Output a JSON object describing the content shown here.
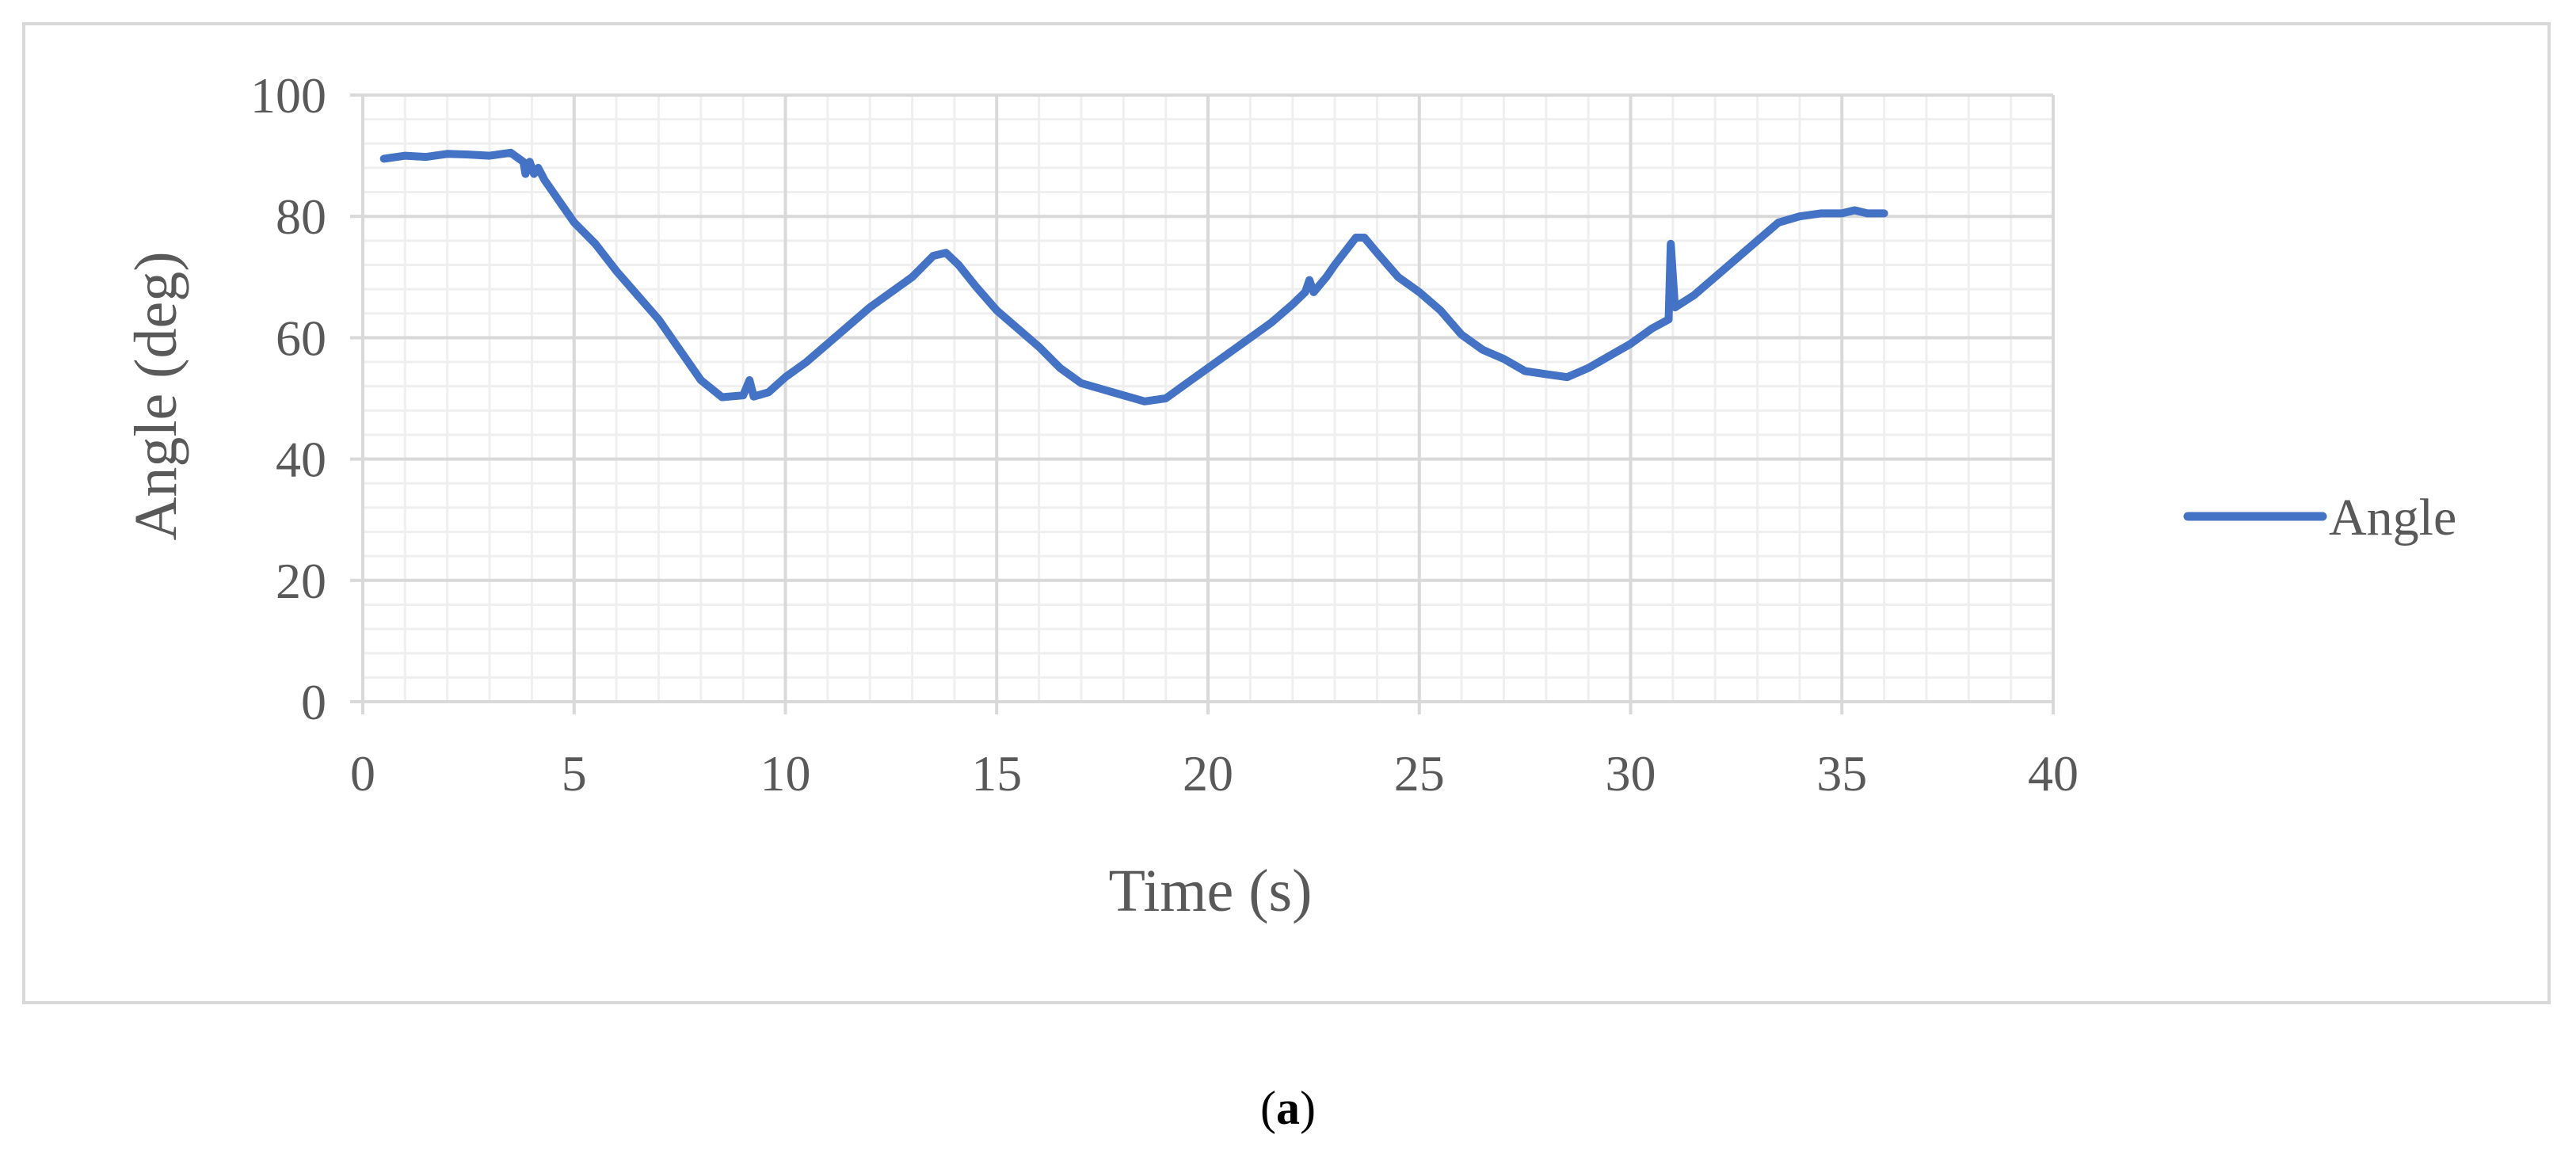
{
  "chart_data": {
    "type": "line",
    "xlabel": "Time (s)",
    "ylabel": "Angle (deg)",
    "xlim": [
      0,
      40
    ],
    "ylim": [
      0,
      100
    ],
    "x_ticks": [
      "0",
      "5",
      "10",
      "15",
      "20",
      "25",
      "30",
      "35",
      "40"
    ],
    "y_ticks": [
      "0",
      "20",
      "40",
      "60",
      "80",
      "100"
    ],
    "grid": true,
    "legend_position": "right",
    "series": [
      {
        "name": "Angle",
        "color": "#4472c4",
        "points": [
          [
            0.5,
            89.5
          ],
          [
            1,
            90
          ],
          [
            1.5,
            89.8
          ],
          [
            2,
            90.3
          ],
          [
            2.5,
            90.2
          ],
          [
            3,
            90
          ],
          [
            3.5,
            90.5
          ],
          [
            3.8,
            89
          ],
          [
            3.85,
            87
          ],
          [
            3.95,
            89
          ],
          [
            4.05,
            87
          ],
          [
            4.15,
            88
          ],
          [
            4.3,
            86
          ],
          [
            4.6,
            83
          ],
          [
            5,
            79
          ],
          [
            5.5,
            75.5
          ],
          [
            6,
            71
          ],
          [
            6.5,
            67
          ],
          [
            7,
            63
          ],
          [
            7.5,
            58
          ],
          [
            8,
            53
          ],
          [
            8.5,
            50.2
          ],
          [
            9,
            50.5
          ],
          [
            9.15,
            53
          ],
          [
            9.25,
            50.3
          ],
          [
            9.6,
            51
          ],
          [
            10,
            53.5
          ],
          [
            10.5,
            56
          ],
          [
            11,
            59
          ],
          [
            11.5,
            62
          ],
          [
            12,
            65
          ],
          [
            12.5,
            67.5
          ],
          [
            13,
            70
          ],
          [
            13.5,
            73.5
          ],
          [
            13.8,
            74
          ],
          [
            14.1,
            72
          ],
          [
            14.5,
            68.5
          ],
          [
            15,
            64.5
          ],
          [
            15.5,
            61.5
          ],
          [
            16,
            58.5
          ],
          [
            16.5,
            55
          ],
          [
            17,
            52.5
          ],
          [
            17.5,
            51.5
          ],
          [
            18,
            50.5
          ],
          [
            18.5,
            49.5
          ],
          [
            19,
            50
          ],
          [
            19.5,
            52.5
          ],
          [
            20,
            55
          ],
          [
            20.5,
            57.5
          ],
          [
            21,
            60
          ],
          [
            21.5,
            62.5
          ],
          [
            22,
            65.5
          ],
          [
            22.3,
            67.5
          ],
          [
            22.4,
            69.5
          ],
          [
            22.5,
            67.5
          ],
          [
            22.8,
            70
          ],
          [
            23,
            72
          ],
          [
            23.5,
            76.5
          ],
          [
            23.7,
            76.5
          ],
          [
            24,
            74
          ],
          [
            24.5,
            70
          ],
          [
            25,
            67.5
          ],
          [
            25.5,
            64.5
          ],
          [
            26,
            60.5
          ],
          [
            26.5,
            58
          ],
          [
            27,
            56.5
          ],
          [
            27.5,
            54.5
          ],
          [
            28,
            54
          ],
          [
            28.5,
            53.5
          ],
          [
            29,
            55
          ],
          [
            29.5,
            57
          ],
          [
            30,
            59
          ],
          [
            30.5,
            61.5
          ],
          [
            30.9,
            63
          ],
          [
            30.95,
            75.5
          ],
          [
            31.05,
            65
          ],
          [
            31.5,
            67
          ],
          [
            32,
            70
          ],
          [
            32.5,
            73
          ],
          [
            33,
            76
          ],
          [
            33.5,
            79
          ],
          [
            34,
            80
          ],
          [
            34.5,
            80.5
          ],
          [
            35,
            80.5
          ],
          [
            35.3,
            81
          ],
          [
            35.6,
            80.5
          ],
          [
            36,
            80.5
          ]
        ]
      }
    ]
  },
  "legend": {
    "label": "Angle"
  },
  "caption": {
    "letter": "a"
  }
}
